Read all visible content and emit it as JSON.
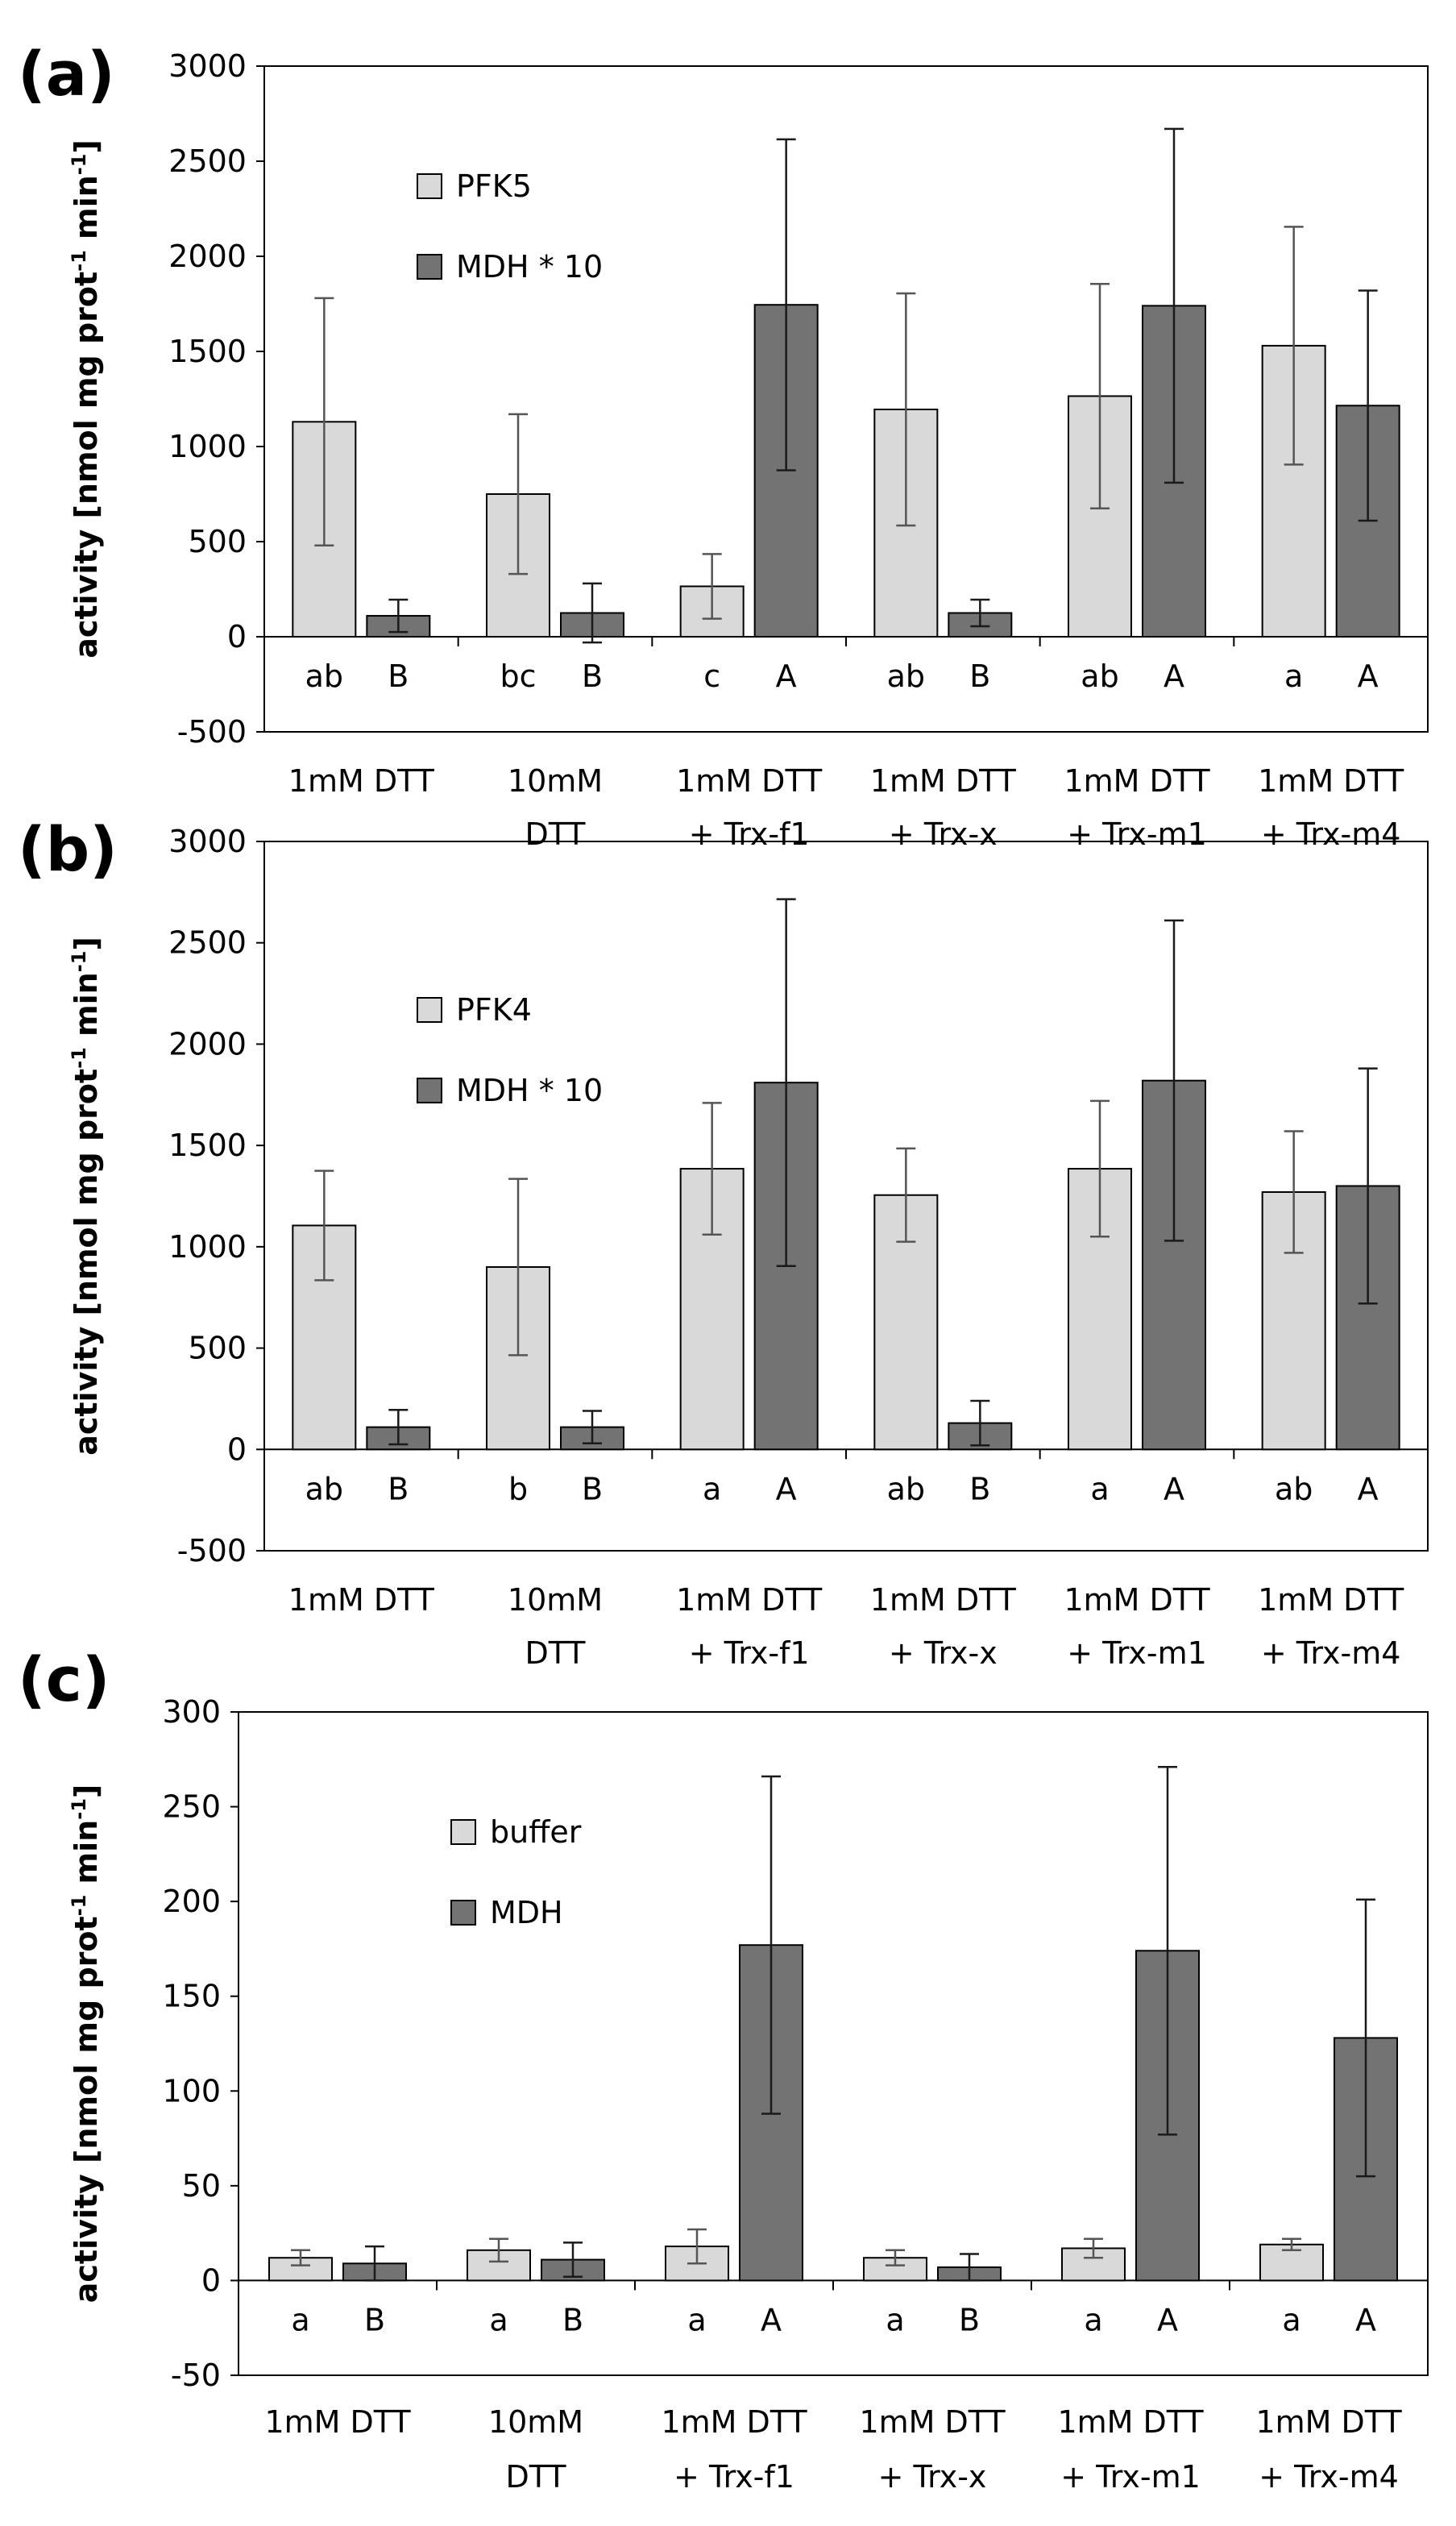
{
  "chart_data": [
    {
      "type": "bar",
      "panel_label": "(a)",
      "ylabel": "activity [nmol mg prot-1 min-1]",
      "ylabel_parts": [
        "activity [nmol mg prot",
        "-1",
        " min",
        "-1",
        "]"
      ],
      "ylim": [
        -500,
        3000
      ],
      "yticks": [
        -500,
        0,
        500,
        1000,
        1500,
        2000,
        2500,
        3000
      ],
      "yticks_labels": [
        "-500",
        "0",
        "500",
        "1000",
        "1500",
        "2000",
        "2500",
        "3000"
      ],
      "categories": [
        [
          "1mM DTT"
        ],
        [
          "10mM",
          "DTT"
        ],
        [
          "1mM DTT",
          "+ Trx-f1"
        ],
        [
          "1mM DTT",
          "+ Trx-x"
        ],
        [
          "1mM DTT",
          "+ Trx-m1"
        ],
        [
          "1mM DTT",
          "+ Trx-m4"
        ]
      ],
      "series": [
        {
          "name": "PFK5",
          "color": "#d9d9d9",
          "errColor": "#555555",
          "values": [
            1130,
            750,
            265,
            1195,
            1265,
            1530
          ],
          "errors": [
            650,
            420,
            170,
            610,
            590,
            625
          ],
          "letters": [
            "ab",
            "bc",
            "c",
            "ab",
            "ab",
            "a"
          ]
        },
        {
          "name": "MDH * 10",
          "color": "#737373",
          "errColor": "#1a1a1a",
          "values": [
            110,
            125,
            1745,
            125,
            1740,
            1215
          ],
          "errors": [
            85,
            155,
            870,
            70,
            930,
            605
          ],
          "letters": [
            "B",
            "B",
            "A",
            "B",
            "A",
            "A"
          ]
        }
      ]
    },
    {
      "type": "bar",
      "panel_label": "(b)",
      "ylabel": "activity [nmol mg prot-1 min-1]",
      "ylabel_parts": [
        "activity [nmol mg prot",
        "-1",
        " min",
        "-1",
        "]"
      ],
      "ylim": [
        -500,
        3000
      ],
      "yticks": [
        -500,
        0,
        500,
        1000,
        1500,
        2000,
        2500,
        3000
      ],
      "yticks_labels": [
        "-500",
        "0",
        "500",
        "1000",
        "1500",
        "2000",
        "2500",
        "3000"
      ],
      "categories": [
        [
          "1mM DTT"
        ],
        [
          "10mM",
          "DTT"
        ],
        [
          "1mM DTT",
          "+ Trx-f1"
        ],
        [
          "1mM DTT",
          "+ Trx-x"
        ],
        [
          "1mM DTT",
          "+ Trx-m1"
        ],
        [
          "1mM DTT",
          "+ Trx-m4"
        ]
      ],
      "series": [
        {
          "name": "PFK4",
          "color": "#d9d9d9",
          "errColor": "#555555",
          "values": [
            1105,
            900,
            1385,
            1255,
            1385,
            1270
          ],
          "errors": [
            270,
            435,
            325,
            230,
            335,
            300
          ],
          "letters": [
            "ab",
            "b",
            "a",
            "ab",
            "a",
            "ab"
          ]
        },
        {
          "name": "MDH * 10",
          "color": "#737373",
          "errColor": "#1a1a1a",
          "values": [
            110,
            110,
            1810,
            130,
            1820,
            1300
          ],
          "errors": [
            85,
            80,
            905,
            110,
            790,
            580
          ],
          "letters": [
            "B",
            "B",
            "A",
            "B",
            "A",
            "A"
          ]
        }
      ]
    },
    {
      "type": "bar",
      "panel_label": "(c)",
      "ylabel": "activity [nmol mg prot-1 min-1]",
      "ylabel_parts": [
        "activity [nmol mg prot",
        "-1",
        " min",
        "-1",
        "]"
      ],
      "ylim": [
        -50,
        300
      ],
      "yticks": [
        -50,
        0,
        50,
        100,
        150,
        200,
        250,
        300
      ],
      "yticks_labels": [
        "-50",
        "0",
        "50",
        "100",
        "150",
        "200",
        "250",
        "300"
      ],
      "categories": [
        [
          "1mM DTT"
        ],
        [
          "10mM",
          "DTT"
        ],
        [
          "1mM DTT",
          "+ Trx-f1"
        ],
        [
          "1mM DTT",
          "+ Trx-x"
        ],
        [
          "1mM DTT",
          "+ Trx-m1"
        ],
        [
          "1mM DTT",
          "+ Trx-m4"
        ]
      ],
      "series": [
        {
          "name": "buffer",
          "color": "#d9d9d9",
          "errColor": "#555555",
          "values": [
            12,
            16,
            18,
            12,
            17,
            19
          ],
          "errors": [
            4,
            6,
            9,
            4,
            5,
            3
          ],
          "letters": [
            "a",
            "a",
            "a",
            "a",
            "a",
            "a"
          ]
        },
        {
          "name": "MDH",
          "color": "#737373",
          "errColor": "#1a1a1a",
          "values": [
            9,
            11,
            177,
            7,
            174,
            128
          ],
          "errors": [
            9,
            9,
            89,
            7,
            97,
            73
          ],
          "letters": [
            "B",
            "B",
            "A",
            "B",
            "A",
            "A"
          ]
        }
      ]
    }
  ]
}
